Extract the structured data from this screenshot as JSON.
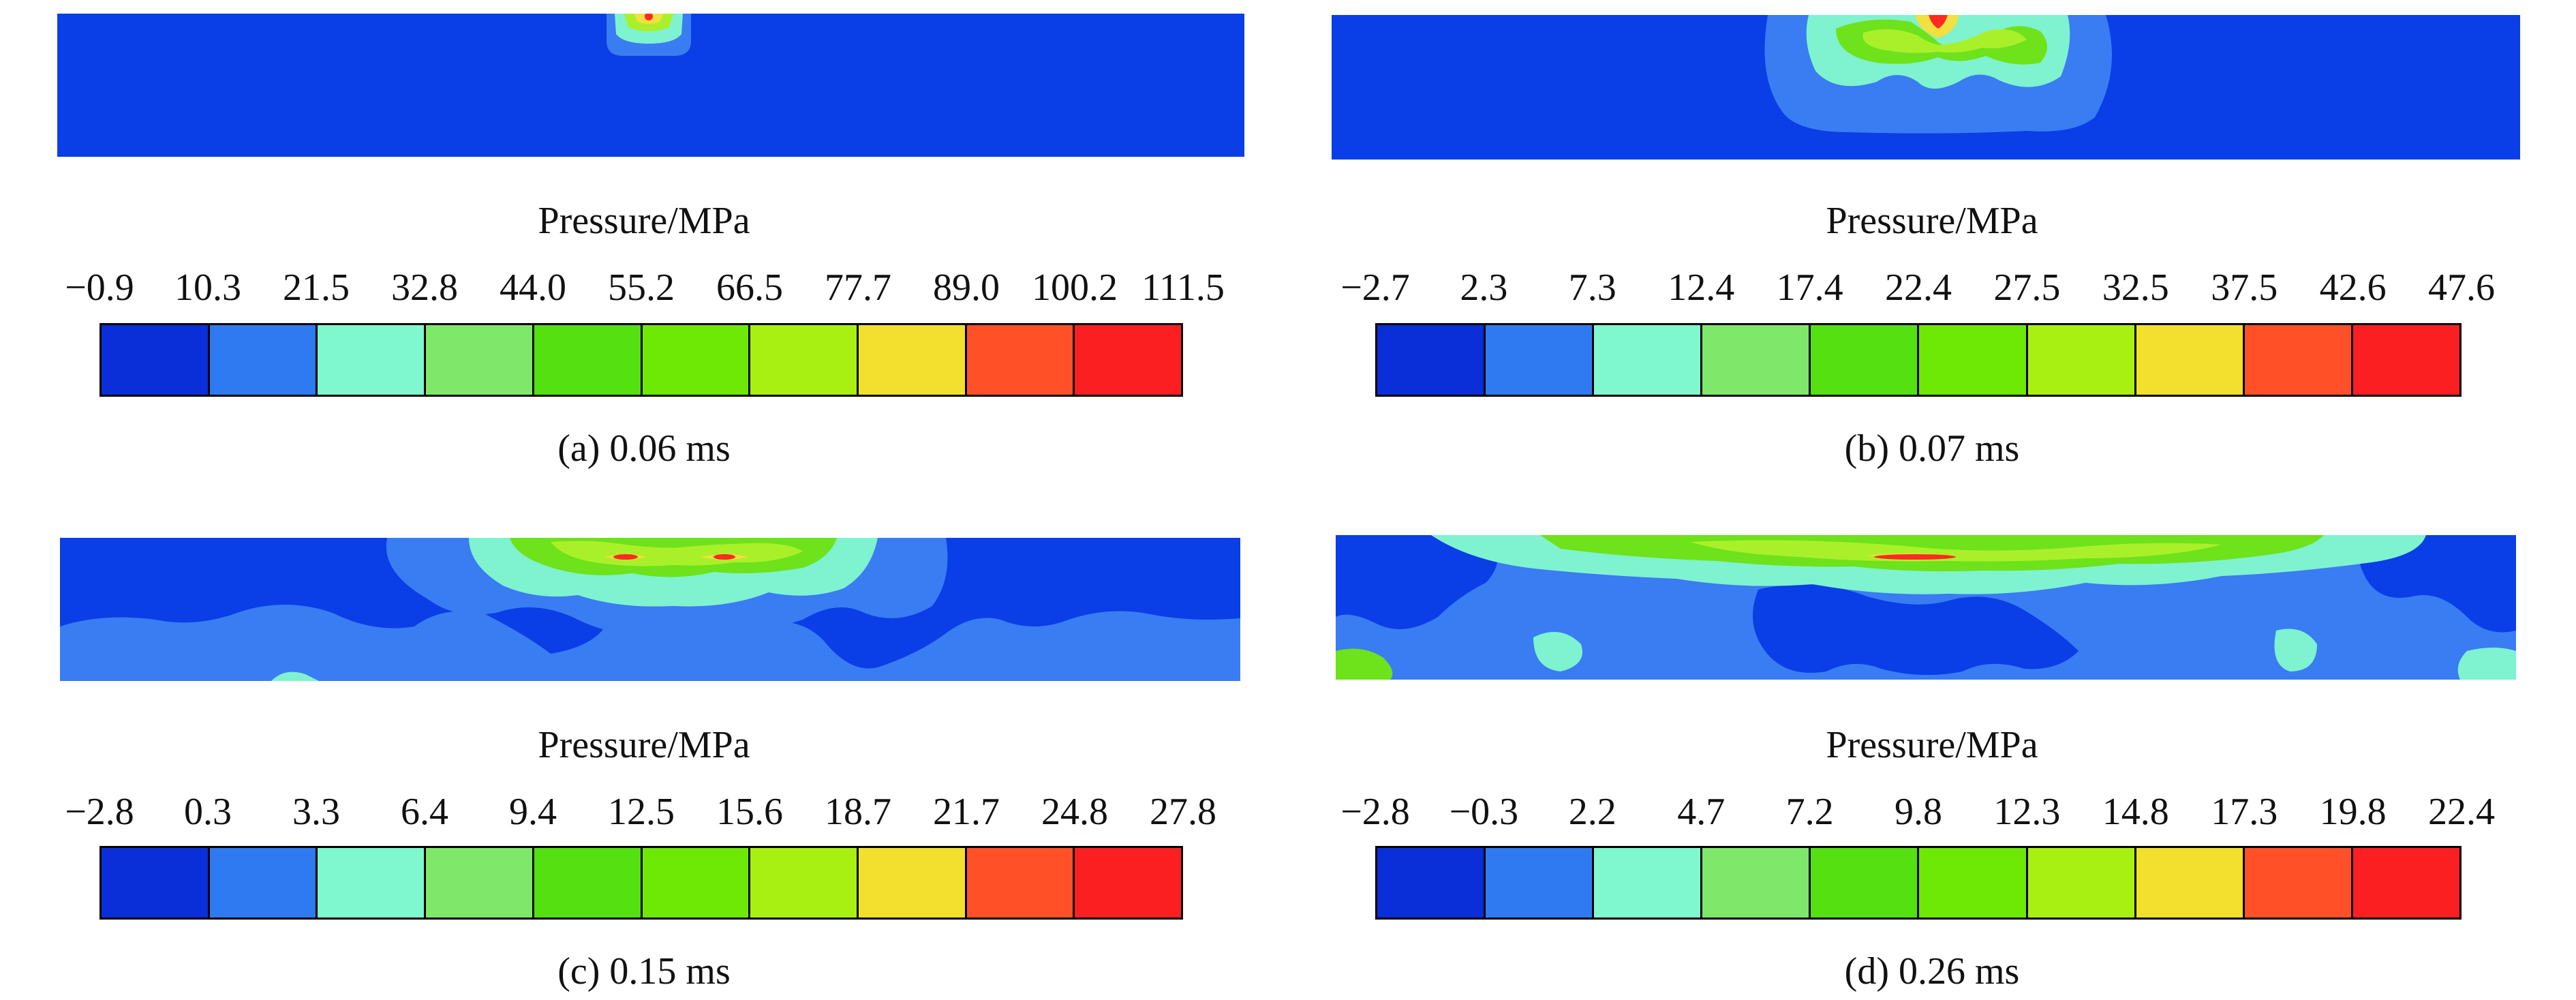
{
  "legend_title": "Pressure/MPa",
  "colormap": [
    "#0a2fd8",
    "#2f7af0",
    "#7ff7cf",
    "#7fe86a",
    "#54e011",
    "#6ee805",
    "#a8f012",
    "#f2df2e",
    "#ff5027",
    "#fb1f22"
  ],
  "field_colors": {
    "background": "#0a3ee6",
    "blue2": "#3a7cf2",
    "cyan": "#7ff2d0",
    "green": "#6ee21a",
    "lime": "#aaf02a",
    "yellow": "#f0e040",
    "red": "#ff2a22"
  },
  "panels": [
    {
      "id": "a",
      "caption": "(a) 0.06 ms",
      "ticks": [
        "−0.9",
        "10.3",
        "21.5",
        "32.8",
        "44.0",
        "55.2",
        "66.5",
        "77.7",
        "89.0",
        "100.2",
        "111.5"
      ]
    },
    {
      "id": "b",
      "caption": "(b) 0.07 ms",
      "ticks": [
        "−2.7",
        "2.3",
        "7.3",
        "12.4",
        "17.4",
        "22.4",
        "27.5",
        "32.5",
        "37.5",
        "42.6",
        "47.6"
      ]
    },
    {
      "id": "c",
      "caption": "(c) 0.15 ms",
      "ticks": [
        "−2.8",
        "0.3",
        "3.3",
        "6.4",
        "9.4",
        "12.5",
        "15.6",
        "18.7",
        "21.7",
        "24.8",
        "27.8"
      ]
    },
    {
      "id": "d",
      "caption": "(d) 0.26 ms",
      "ticks": [
        "−2.8",
        "−0.3",
        "2.2",
        "4.7",
        "7.2",
        "9.8",
        "12.3",
        "14.8",
        "17.3",
        "19.8",
        "22.4"
      ]
    }
  ]
}
